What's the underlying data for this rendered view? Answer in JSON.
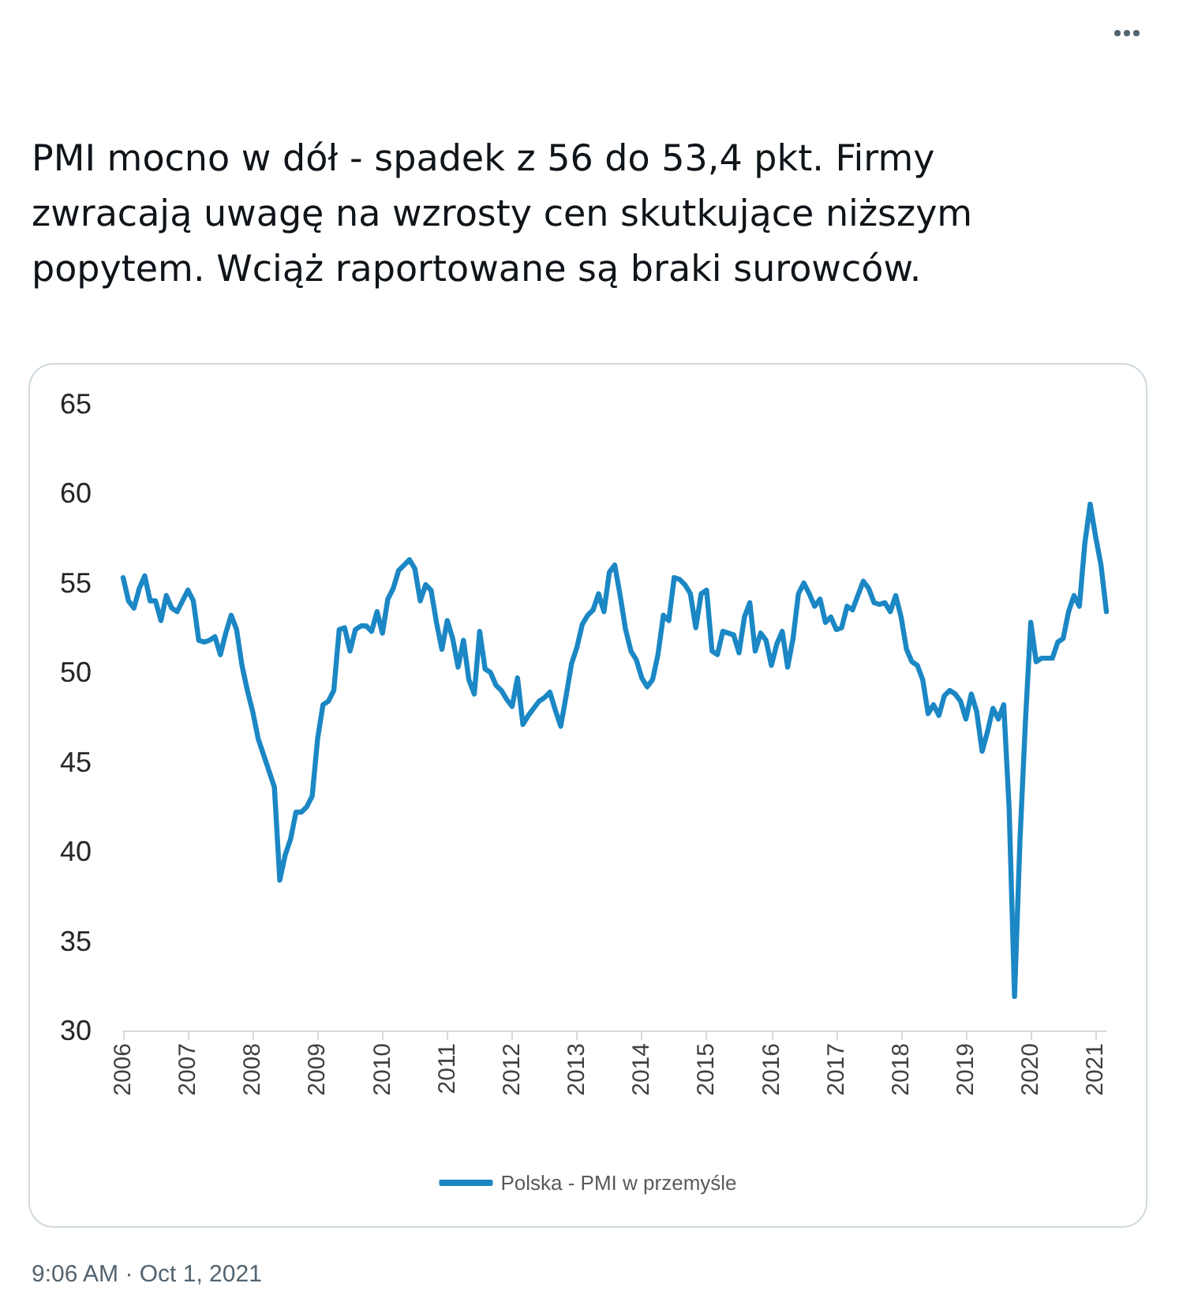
{
  "chart_data": {
    "type": "line",
    "title": "PMI mocno w dół - spadek z 56 do 53,4 pkt. Firmy zwracają uwagę na wzrosty cen skutkujące niższym popytem. Wciąż raportowane są braki surowców.",
    "categories": [
      "2006",
      null,
      null,
      null,
      null,
      null,
      null,
      null,
      null,
      null,
      null,
      null,
      "2007",
      null,
      null,
      null,
      null,
      null,
      null,
      null,
      null,
      null,
      null,
      null,
      "2008",
      null,
      null,
      null,
      null,
      null,
      null,
      null,
      null,
      null,
      null,
      null,
      "2009",
      null,
      null,
      null,
      null,
      null,
      null,
      null,
      null,
      null,
      null,
      null,
      "2010",
      null,
      null,
      null,
      null,
      null,
      null,
      null,
      null,
      null,
      null,
      null,
      "2011",
      null,
      null,
      null,
      null,
      null,
      null,
      null,
      null,
      null,
      null,
      null,
      "2012",
      null,
      null,
      null,
      null,
      null,
      null,
      null,
      null,
      null,
      null,
      null,
      "2013",
      null,
      null,
      null,
      null,
      null,
      null,
      null,
      null,
      null,
      null,
      null,
      "2014",
      null,
      null,
      null,
      null,
      null,
      null,
      null,
      null,
      null,
      null,
      null,
      "2015",
      null,
      null,
      null,
      null,
      null,
      null,
      null,
      null,
      null,
      null,
      null,
      "2016",
      null,
      null,
      null,
      null,
      null,
      null,
      null,
      null,
      null,
      null,
      null,
      "2017",
      null,
      null,
      null,
      null,
      null,
      null,
      null,
      null,
      null,
      null,
      null,
      "2018",
      null,
      null,
      null,
      null,
      null,
      null,
      null,
      null,
      null,
      null,
      null,
      "2019",
      null,
      null,
      null,
      null,
      null,
      null,
      null,
      null,
      null,
      null,
      null,
      "2020",
      null,
      null,
      null,
      null,
      null,
      null,
      null,
      null,
      null,
      null,
      null,
      "2021",
      null,
      null
    ],
    "series": [
      {
        "name": "Polska - PMI w przemyśle",
        "color": "#1b87c4",
        "values": [
          55.3,
          54.0,
          53.6,
          54.7,
          55.4,
          54.0,
          54.0,
          52.9,
          54.3,
          53.6,
          53.4,
          54.0,
          54.6,
          54.0,
          51.8,
          51.7,
          51.8,
          52.0,
          51.0,
          52.2,
          53.2,
          52.4,
          50.4,
          49.0,
          47.8,
          46.3,
          45.4,
          44.5,
          43.6,
          38.4,
          39.8,
          40.7,
          42.2,
          42.2,
          42.5,
          43.1,
          46.3,
          48.2,
          48.4,
          49.0,
          52.4,
          52.5,
          51.2,
          52.4,
          52.6,
          52.6,
          52.3,
          53.4,
          52.2,
          54.1,
          54.7,
          55.7,
          56.0,
          56.3,
          55.8,
          54.0,
          54.9,
          54.6,
          52.8,
          51.3,
          52.9,
          51.9,
          50.3,
          51.8,
          49.6,
          48.8,
          52.3,
          50.2,
          50.0,
          49.3,
          49.0,
          48.5,
          48.1,
          49.7,
          47.1,
          47.6,
          48.0,
          48.4,
          48.6,
          48.9,
          47.9,
          47.0,
          48.7,
          50.5,
          51.4,
          52.7,
          53.2,
          53.5,
          54.4,
          53.4,
          55.6,
          56.0,
          54.3,
          52.4,
          51.2,
          50.7,
          49.7,
          49.2,
          49.6,
          51.0,
          53.2,
          52.9,
          55.3,
          55.2,
          54.9,
          54.4,
          52.5,
          54.4,
          54.6,
          51.2,
          51.0,
          52.3,
          52.2,
          52.1,
          51.1,
          53.1,
          53.9,
          51.2,
          52.2,
          51.8,
          50.4,
          51.6,
          52.3,
          50.3,
          51.9,
          54.4,
          55.0,
          54.4,
          53.7,
          54.1,
          52.8,
          53.1,
          52.4,
          52.5,
          53.7,
          53.5,
          54.3,
          55.1,
          54.7,
          53.9,
          53.8,
          53.9,
          53.4,
          54.3,
          53.1,
          51.3,
          50.6,
          50.4,
          49.6,
          47.7,
          48.2,
          47.6,
          48.7,
          49.0,
          48.8,
          48.4,
          47.4,
          48.8,
          47.8,
          45.6,
          46.7,
          48.0,
          47.4,
          48.2,
          42.4,
          31.9,
          40.6,
          47.2,
          52.8,
          50.6,
          50.8,
          50.8,
          50.8,
          51.7,
          51.9,
          53.4,
          54.3,
          53.7,
          57.2,
          59.4,
          57.6,
          56.0,
          53.4
        ]
      }
    ],
    "ylim": [
      30,
      65
    ],
    "yticks": [
      30,
      35,
      40,
      45,
      50,
      55,
      60,
      65
    ],
    "grid": false,
    "legend": "bottom",
    "marker": "none",
    "line_style": "solid",
    "annotations": [
      "9:06 AM · Oct 1, 2021"
    ]
  }
}
